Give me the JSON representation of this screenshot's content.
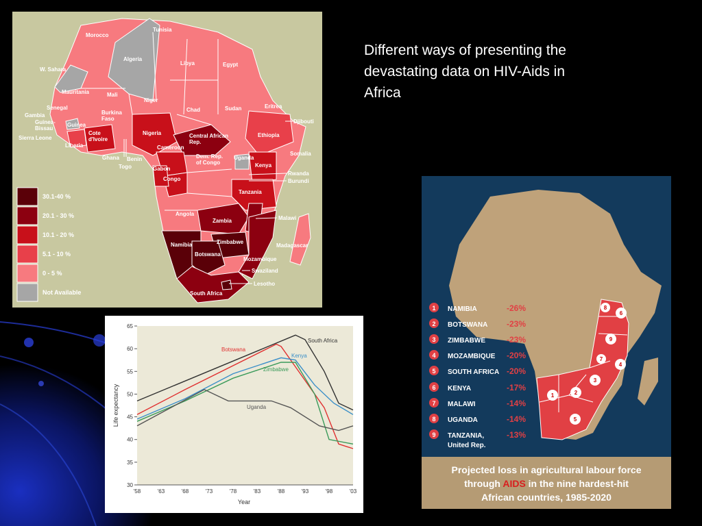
{
  "slide": {
    "title": "Different ways of presenting the\ndevastating data on HIV-Aids in\nAfrica"
  },
  "colors": {
    "background": "#000000",
    "map_base": "#f77a7f",
    "map_land": "#bfa27a",
    "map_sea": "#133a5c",
    "band_30_40": "#5a0008",
    "band_20_30": "#8c0010",
    "band_10_20": "#c8101a",
    "band_5_10": "#e8404a",
    "band_0_5": "#f77a7f",
    "not_available": "#a6a6a6"
  },
  "prevalence_map": {
    "countries": {
      "morocco": "Morocco",
      "algeria": "Algeria",
      "tunisia": "Tunisia",
      "libya": "Libya",
      "egypt": "Egypt",
      "w_sahara": "W. Sahara",
      "mauritania": "Mauritania",
      "mali": "Mali",
      "niger": "Niger",
      "chad": "Chad",
      "sudan": "Sudan",
      "eritrea": "Eritrea",
      "djibouti": "Djibouti",
      "senegal": "Senegal",
      "gambia": "Gambia",
      "guinea_bissau": "Guinea-\nBissau",
      "guinea": "Guinea",
      "sierra_leone": "Sierra Leone",
      "liberia": "Liberia",
      "burkina_faso": "Burkina\nFaso",
      "cote_divoire": "Cote\nd'Ivoire",
      "ghana": "Ghana",
      "benin": "Benin",
      "togo": "Togo",
      "nigeria": "Nigeria",
      "car": "Central African\nRep.",
      "ethiopia": "Ethiopia",
      "somalia": "Somalia",
      "cameroon": "Cameroon",
      "gabon": "Gabon",
      "congo": "Congo",
      "drc": "Dem. Rep.\nof Congo",
      "uganda": "Uganda",
      "kenya": "Kenya",
      "rwanda": "Rwanda",
      "burundi": "Burundi",
      "tanzania": "Tanzania",
      "angola": "Angola",
      "zambia": "Zambia",
      "malawi": "Malawi",
      "zimbabwe": "Zimbabwe",
      "namibia": "Namibia",
      "botswana": "Botswana",
      "mozambique": "Mozambique",
      "madagascar": "Madagascar",
      "swaziland": "Swaziland",
      "south_africa": "South Africa",
      "lesotho": "Lesotho"
    },
    "legend": [
      {
        "label": "30.1-40 %",
        "color": "#5a0008"
      },
      {
        "label": "20.1 - 30 %",
        "color": "#8c0010"
      },
      {
        "label": "10.1 - 20 %",
        "color": "#c8101a"
      },
      {
        "label": "5.1 - 10 %",
        "color": "#e8404a"
      },
      {
        "label": "0 - 5 %",
        "color": "#f77a7f"
      },
      {
        "label": "Not Available",
        "color": "#a6a6a6"
      }
    ]
  },
  "chart_data": {
    "type": "line",
    "title": "",
    "xlabel": "Year",
    "ylabel": "Life expectancy",
    "x_ticks": [
      "'58",
      "'63",
      "'68",
      "'73",
      "'78",
      "'83",
      "'88",
      "'93",
      "'98",
      "'03"
    ],
    "xlim": [
      1958,
      2003
    ],
    "ylim": [
      30,
      65
    ],
    "y_ticks": [
      30,
      35,
      40,
      45,
      50,
      55,
      60,
      65
    ],
    "grid": false,
    "series": [
      {
        "name": "South Africa",
        "color": "#333333",
        "x": [
          1958,
          1991,
          1993,
          1997,
          2000,
          2003
        ],
        "y": [
          48.5,
          63,
          62,
          55,
          48,
          46.5
        ]
      },
      {
        "name": "Botswana",
        "color": "#e03030",
        "x": [
          1958,
          1968,
          1987,
          1988,
          1993,
          1997,
          2000,
          2003
        ],
        "y": [
          45.5,
          51,
          61,
          60.5,
          53,
          47,
          39,
          38
        ]
      },
      {
        "name": "Kenya",
        "color": "#3a8fc8",
        "x": [
          1958,
          1968,
          1978,
          1988,
          1991,
          1995,
          1999,
          2003
        ],
        "y": [
          44.5,
          49,
          54.5,
          58,
          57.5,
          52,
          48,
          45.5
        ]
      },
      {
        "name": "Zimbabwe",
        "color": "#3a9a5a",
        "x": [
          1958,
          1968,
          1978,
          1988,
          1991,
          1995,
          1998,
          2003
        ],
        "y": [
          44,
          48.5,
          53.5,
          57,
          57,
          50,
          40,
          39
        ]
      },
      {
        "name": "Uganda",
        "color": "#555555",
        "x": [
          1958,
          1972,
          1977,
          1986,
          1990,
          1996,
          2000,
          2003
        ],
        "y": [
          43,
          51,
          48.5,
          48.5,
          47,
          43,
          42,
          43
        ]
      }
    ]
  },
  "labour_map": {
    "caption_line1": "Projected loss in agricultural labour force",
    "caption_line2a": "through",
    "caption_aids": "AIDS",
    "caption_line2b": "in the nine hardest-hit",
    "caption_line3": "African countries, 1985-2020",
    "rows": [
      {
        "num": "1",
        "country": "NAMIBIA",
        "value": "-26%"
      },
      {
        "num": "2",
        "country": "BOTSWANA",
        "value": "-23%"
      },
      {
        "num": "3",
        "country": "ZIMBABWE",
        "value": "-23%"
      },
      {
        "num": "4",
        "country": "MOZAMBIQUE",
        "value": "-20%"
      },
      {
        "num": "5",
        "country": "SOUTH AFRICA",
        "value": "-20%"
      },
      {
        "num": "6",
        "country": "KENYA",
        "value": "-17%"
      },
      {
        "num": "7",
        "country": "MALAWI",
        "value": "-14%"
      },
      {
        "num": "8",
        "country": "UGANDA",
        "value": "-14%"
      },
      {
        "num": "9",
        "country": "TANZANIA,",
        "value": "-13%"
      }
    ],
    "tanzania_suffix": "United Rep."
  }
}
